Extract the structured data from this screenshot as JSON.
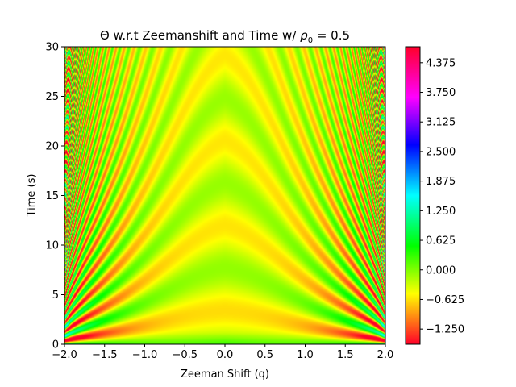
{
  "chart_data": {
    "type": "heatmap",
    "title_prefix": "Θ w.r.t Zeemanshift and Time w/ ",
    "title_symbol": "ρ",
    "title_subscript": "0",
    "title_suffix": " = 0.5",
    "xlabel": "Zeeman Shift (q)",
    "ylabel": "Time (s)",
    "xlim": [
      -2.0,
      2.0
    ],
    "ylim": [
      0,
      30
    ],
    "x_ticks": [
      -2.0,
      -1.5,
      -1.0,
      -0.5,
      0.0,
      0.5,
      1.0,
      1.5,
      2.0
    ],
    "x_tick_labels": [
      "−2.0",
      "−1.5",
      "−1.0",
      "−0.5",
      "0.0",
      "0.5",
      "1.0",
      "1.5",
      "2.0"
    ],
    "y_ticks": [
      0,
      5,
      10,
      15,
      20,
      25,
      30
    ],
    "y_tick_labels": [
      "0",
      "5",
      "10",
      "15",
      "20",
      "25",
      "30"
    ],
    "colorbar": {
      "vmin": -1.5708,
      "vmax": 4.7124,
      "colormap": "gist_rainbow",
      "ticks": [
        -1.25,
        -0.625,
        0.0,
        0.625,
        1.25,
        1.875,
        2.5,
        3.125,
        3.75,
        4.375
      ],
      "tick_labels": [
        "−1.250",
        "−0.625",
        "0.000",
        "0.625",
        "1.250",
        "1.875",
        "2.500",
        "3.125",
        "3.750",
        "4.375"
      ]
    },
    "grid": false,
    "legend": "none"
  }
}
